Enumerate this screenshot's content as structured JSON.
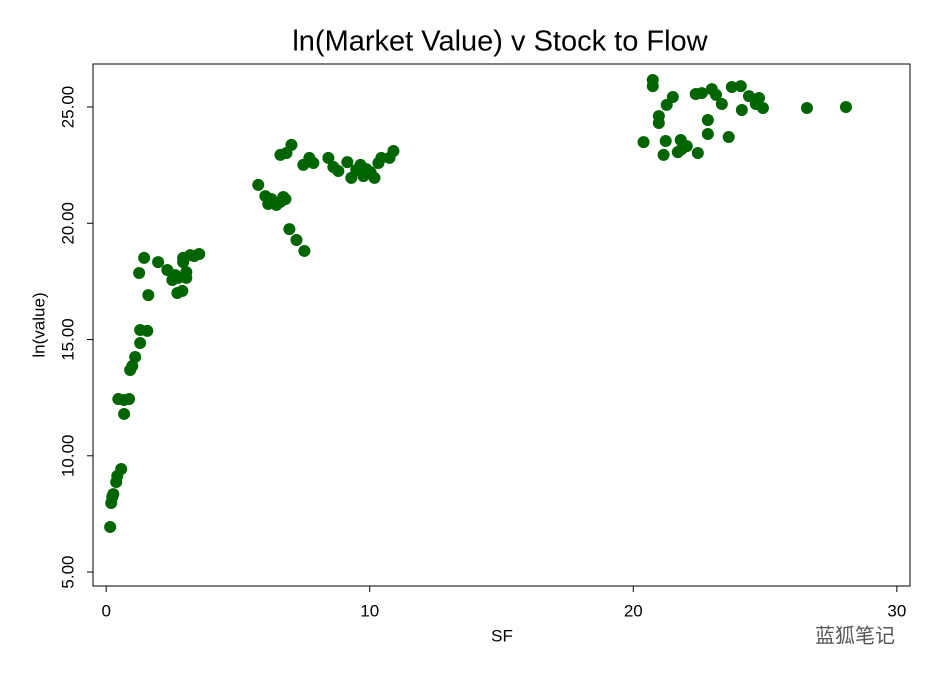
{
  "chart_data": {
    "type": "scatter",
    "title": "ln(Market Value) v Stock to Flow",
    "x_label": "SF",
    "y_label": "ln(value)",
    "watermark": "蓝狐笔记",
    "color": "#006400",
    "x": [
      0.15,
      0.19,
      0.23,
      0.27,
      0.38,
      0.42,
      0.57,
      0.46,
      0.68,
      0.87,
      0.68,
      0.91,
      0.99,
      1.1,
      1.29,
      1.29,
      1.56,
      1.6,
      1.25,
      1.44,
      1.97,
      2.32,
      2.51,
      2.62,
      2.73,
      2.7,
      2.89,
      2.92,
      2.92,
      3.04,
      3.04,
      3.19,
      3.34,
      3.53,
      5.77,
      6.04,
      6.15,
      6.27,
      6.46,
      6.61,
      6.72,
      6.8,
      6.61,
      6.84,
      7.03,
      6.95,
      7.22,
      7.52,
      7.48,
      7.71,
      7.86,
      8.43,
      8.62,
      8.81,
      9.15,
      9.3,
      9.49,
      9.65,
      9.76,
      9.87,
      10.03,
      10.18,
      10.33,
      10.44,
      10.75,
      10.9,
      20.39,
      20.74,
      20.74,
      20.97,
      20.97,
      21.15,
      21.23,
      21.27,
      21.5,
      21.69,
      21.8,
      21.84,
      22.03,
      22.45,
      22.37,
      22.6,
      22.83,
      22.83,
      22.98,
      23.14,
      23.36,
      23.62,
      23.74,
      24.08,
      24.12,
      24.39,
      24.65,
      24.77,
      24.92,
      26.59,
      28.07
    ],
    "values": [
      6.94,
      7.97,
      8.23,
      8.35,
      8.87,
      9.13,
      9.43,
      12.44,
      12.4,
      12.44,
      11.8,
      13.69,
      13.86,
      14.25,
      14.85,
      15.41,
      15.37,
      16.91,
      17.86,
      18.51,
      18.33,
      17.99,
      17.56,
      17.77,
      17.65,
      17.0,
      17.09,
      18.33,
      18.51,
      17.9,
      17.65,
      18.63,
      18.59,
      18.68,
      21.65,
      21.17,
      20.83,
      21.04,
      20.79,
      20.92,
      21.13,
      21.04,
      22.94,
      23.02,
      23.37,
      19.75,
      19.28,
      18.81,
      22.51,
      22.81,
      22.59,
      22.81,
      22.42,
      22.25,
      22.63,
      21.95,
      22.29,
      22.51,
      22.03,
      22.33,
      22.2,
      21.95,
      22.59,
      22.81,
      22.81,
      23.11,
      23.49,
      26.16,
      25.9,
      24.61,
      24.31,
      22.94,
      23.54,
      25.09,
      25.43,
      23.06,
      23.58,
      23.19,
      23.32,
      23.02,
      25.56,
      25.6,
      24.44,
      23.84,
      25.77,
      25.52,
      25.13,
      23.71,
      25.86,
      25.9,
      24.87,
      25.47,
      25.13,
      25.39,
      24.96,
      24.96,
      25.0
    ],
    "xlim": [
      -0.5,
      30.5
    ],
    "ylim": [
      4.4,
      26.85
    ],
    "xticks": [
      0,
      10,
      20,
      30
    ],
    "yticks": [
      {
        "value": 5,
        "label": "5.00"
      },
      {
        "value": 10,
        "label": "10.00"
      },
      {
        "value": 15,
        "label": "15.00"
      },
      {
        "value": 20,
        "label": "20.00"
      },
      {
        "value": 25,
        "label": "25.00"
      }
    ]
  }
}
